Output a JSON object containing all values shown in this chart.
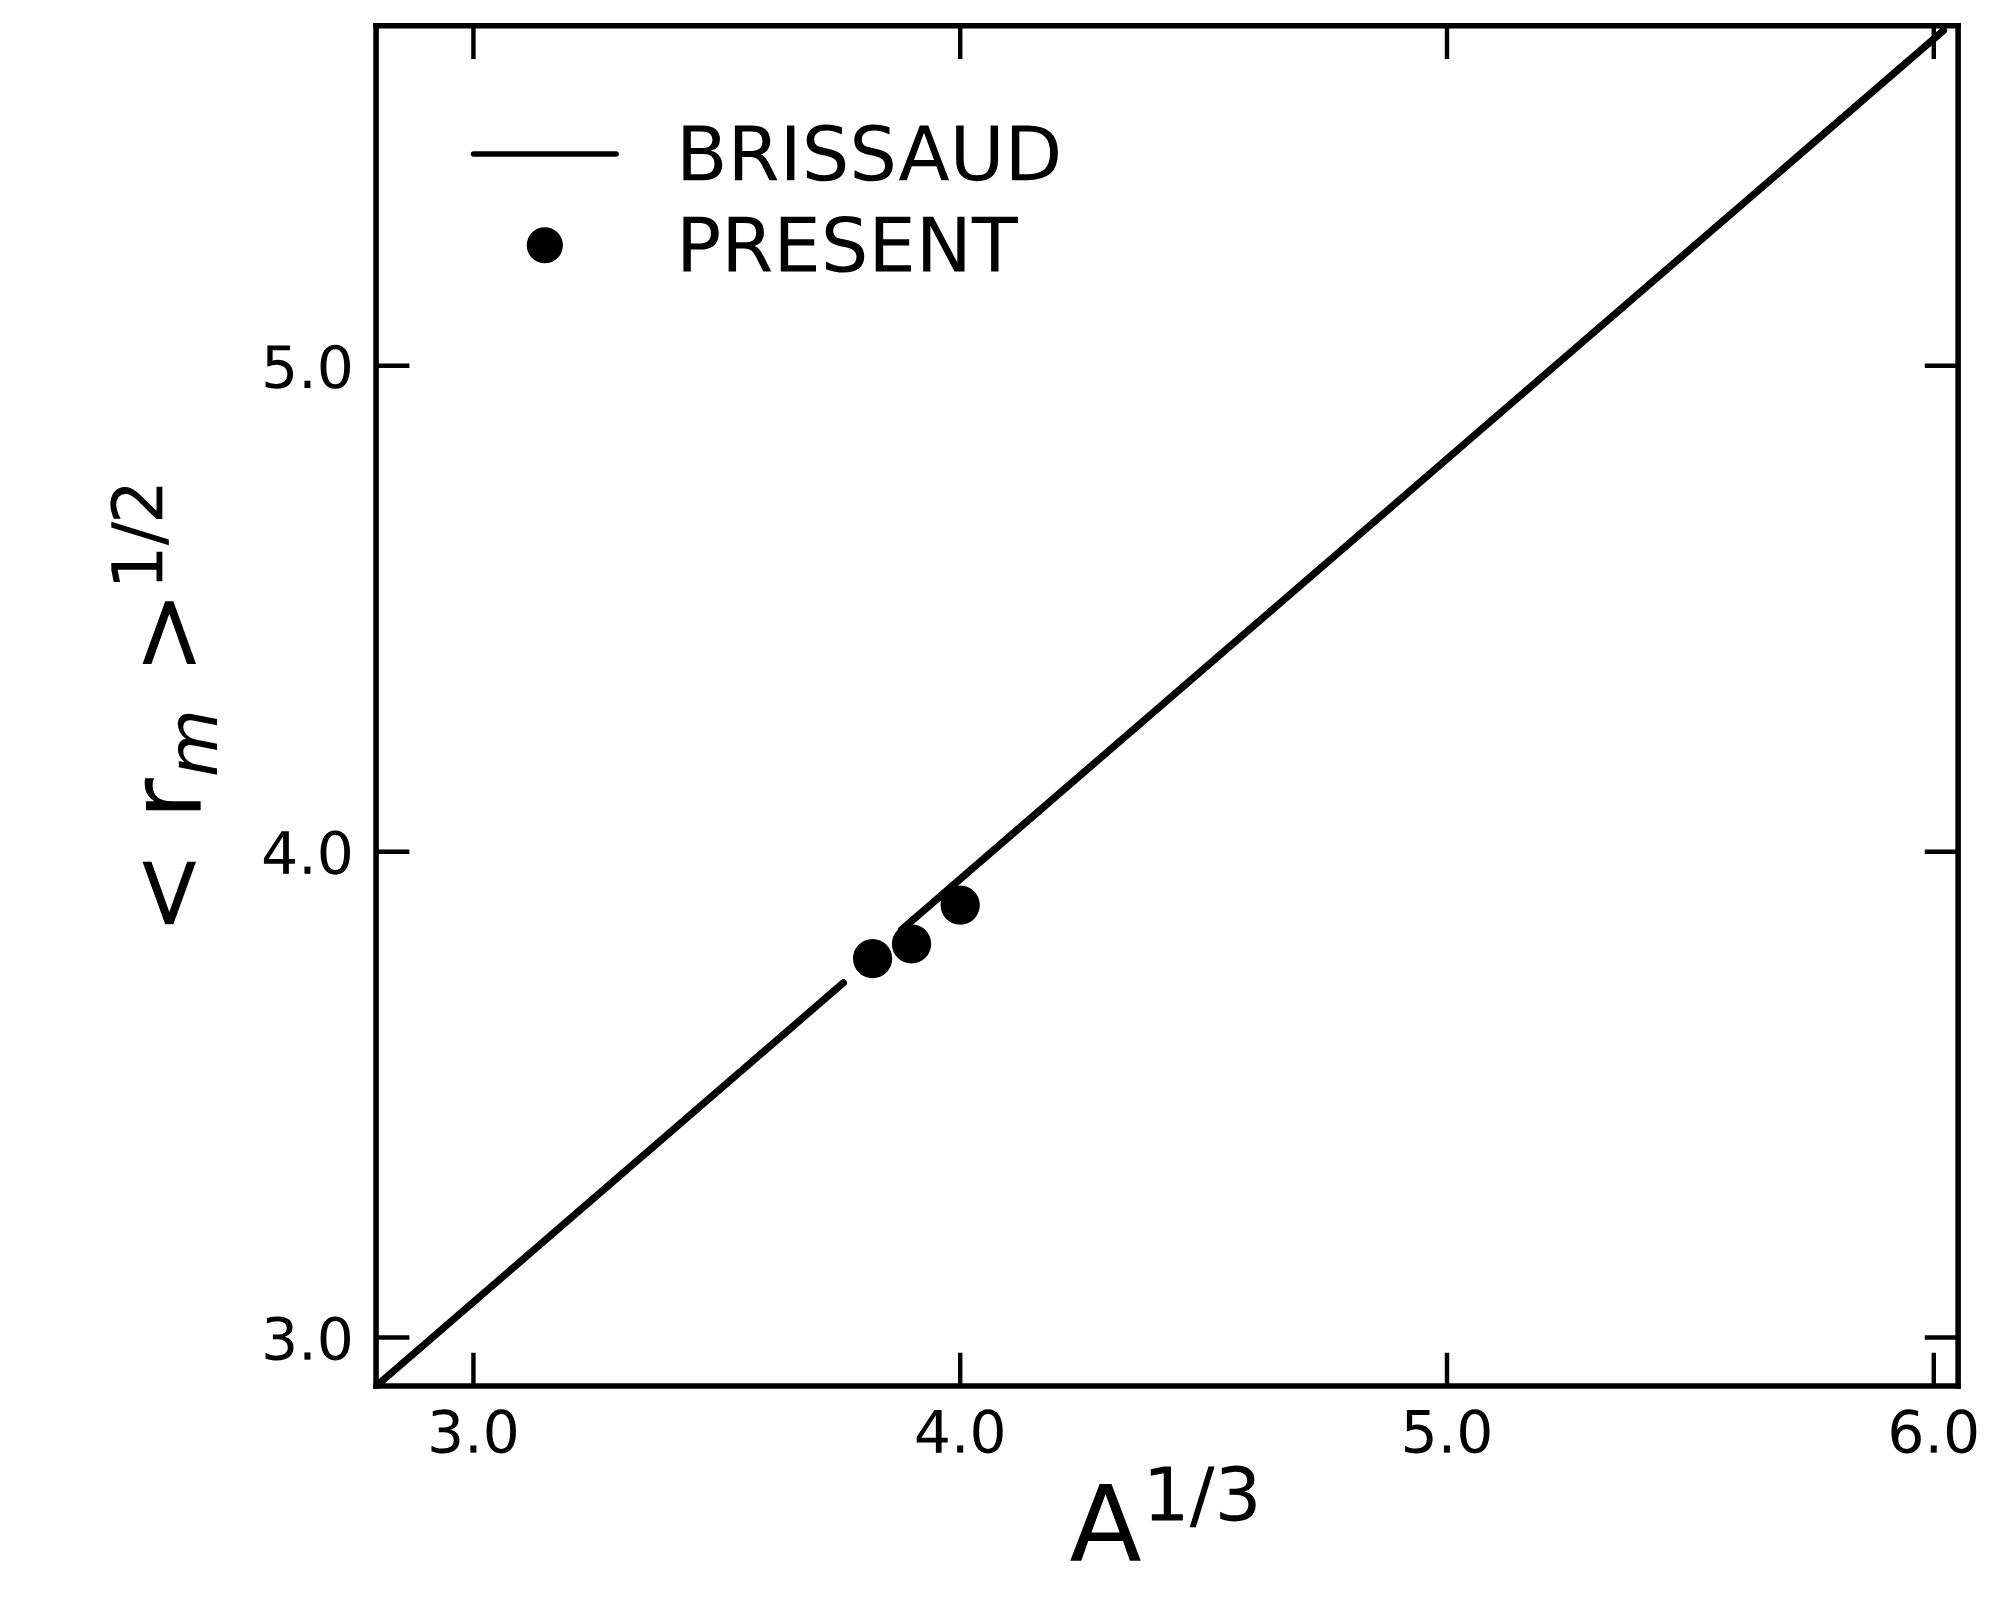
{
  "chart_data": {
    "type": "scatter",
    "xlabel": "A$^{1/3}$",
    "ylabel": "< r$_{m}$ >$^{1/2}$",
    "series": [
      {
        "name": "BRISSAUD",
        "type": "line",
        "color": "#000000",
        "line_style": "solid",
        "x": [
          2.8,
          3.76,
          3.82,
          3.88,
          6.02
        ],
        "values": [
          2.9,
          3.73,
          null,
          3.84,
          5.69
        ]
      },
      {
        "name": "PRESENT",
        "type": "scatter",
        "color": "#000000",
        "marker": "circle",
        "x": [
          3.82,
          3.9,
          4.0
        ],
        "values": [
          3.78,
          3.81,
          3.89
        ]
      }
    ],
    "xlim": [
      2.8,
      6.05
    ],
    "ylim": [
      2.9,
      5.7
    ],
    "xticks": [
      {
        "value": 3,
        "label": "3.0"
      },
      {
        "value": 4,
        "label": "4.0"
      },
      {
        "value": 5,
        "label": "5.0"
      },
      {
        "value": 6,
        "label": "6.0"
      }
    ],
    "yticks": [
      {
        "value": 3,
        "label": "3.0"
      },
      {
        "value": 4,
        "label": "4.0"
      },
      {
        "value": 5,
        "label": "5.0"
      }
    ],
    "legend": "top left"
  }
}
